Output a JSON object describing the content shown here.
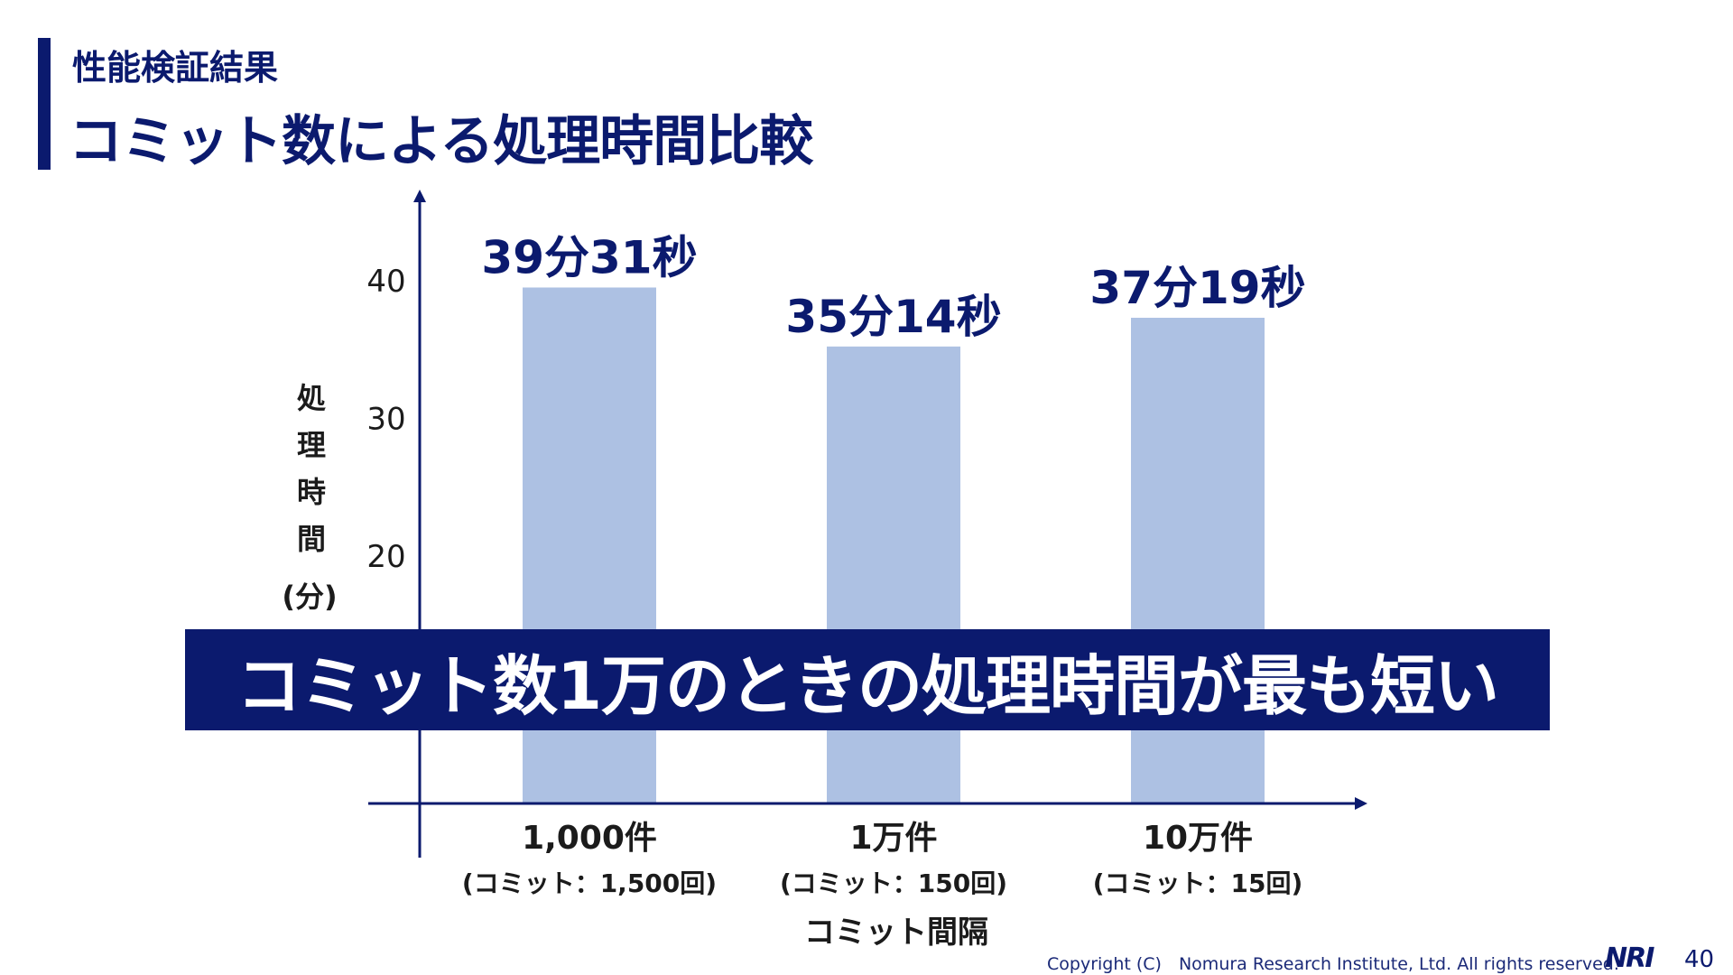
{
  "header": {
    "subtitle": "性能検証結果",
    "title": "コミット数による処理時間比較"
  },
  "chart_data": {
    "type": "bar",
    "categories": [
      "1,000件",
      "1万件",
      "10万件"
    ],
    "category_sublabels": [
      "(コミット：1,500回)",
      "(コミット：150回)",
      "(コミット：15回)"
    ],
    "values": [
      39.52,
      35.23,
      37.32
    ],
    "data_labels": [
      "39分31秒",
      "35分14秒",
      "37分19秒"
    ],
    "yticks": [
      20,
      30,
      40
    ],
    "ylim": [
      2,
      45
    ],
    "ylabel": "処理時間",
    "ylabel_unit": "(分)",
    "xlabel": "コミット間隔",
    "grid": false,
    "bar_color": "#adc1e3",
    "axis_color": "#0b1a6e",
    "label_color": "#0b1a6e"
  },
  "callout": {
    "text": "コミット数1万のときの処理時間が最も短い",
    "background": "#0b1a6e"
  },
  "footer": {
    "copyright": "Copyright (C)　Nomura Research Institute, Ltd. All rights reserved.",
    "logo": "NRI",
    "page_number": "40"
  }
}
